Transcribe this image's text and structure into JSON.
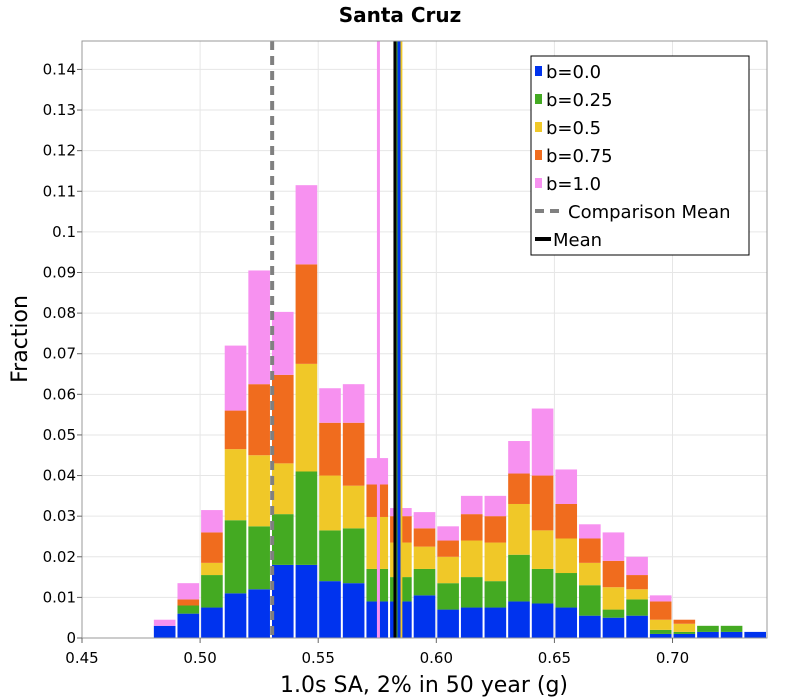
{
  "chart_data": {
    "type": "bar",
    "stacked": true,
    "title": "Santa Cruz",
    "xlabel": "1.0s SA, 2% in 50 year (g)",
    "ylabel": "Fraction",
    "xlim": [
      0.45,
      0.74
    ],
    "ylim": [
      0,
      0.147
    ],
    "xticks": [
      "0.45",
      "0.50",
      "0.55",
      "0.60",
      "0.65",
      "0.70"
    ],
    "xtick_values": [
      0.45,
      0.5,
      0.55,
      0.6,
      0.65,
      0.7
    ],
    "yticks": [
      "0",
      "0.01",
      "0.02",
      "0.03",
      "0.04",
      "0.05",
      "0.06",
      "0.07",
      "0.08",
      "0.09",
      "0.1",
      "0.11",
      "0.12",
      "0.13",
      "0.14"
    ],
    "ytick_values": [
      0,
      0.01,
      0.02,
      0.03,
      0.04,
      0.05,
      0.06,
      0.07,
      0.08,
      0.09,
      0.1,
      0.11,
      0.12,
      0.13,
      0.14
    ],
    "bin_width": 0.01,
    "bin_starts": [
      0.48,
      0.49,
      0.5,
      0.51,
      0.52,
      0.53,
      0.54,
      0.55,
      0.56,
      0.57,
      0.58,
      0.59,
      0.6,
      0.61,
      0.62,
      0.63,
      0.64,
      0.65,
      0.66,
      0.67,
      0.68,
      0.69,
      0.7,
      0.71,
      0.72,
      0.73
    ],
    "series": [
      {
        "name": "b=0.0",
        "color": "#0033ee",
        "values": [
          0.003,
          0.006,
          0.0075,
          0.011,
          0.012,
          0.018,
          0.018,
          0.014,
          0.0135,
          0.009,
          0.009,
          0.0105,
          0.007,
          0.0075,
          0.0075,
          0.009,
          0.0085,
          0.0075,
          0.0055,
          0.005,
          0.0055,
          0.001,
          0.001,
          0.0015,
          0.0015,
          0.0015
        ]
      },
      {
        "name": "b=0.25",
        "color": "#44aa22",
        "values": [
          0.0,
          0.002,
          0.008,
          0.018,
          0.0155,
          0.0125,
          0.023,
          0.0125,
          0.0135,
          0.008,
          0.006,
          0.0065,
          0.0065,
          0.0075,
          0.0065,
          0.0115,
          0.0085,
          0.0085,
          0.0075,
          0.002,
          0.004,
          0.001,
          0.0005,
          0.0015,
          0.0015,
          0.0
        ]
      },
      {
        "name": "b=0.5",
        "color": "#f0c828",
        "values": [
          0.0,
          0.0,
          0.003,
          0.0175,
          0.0175,
          0.0125,
          0.0265,
          0.0135,
          0.0105,
          0.0128,
          0.0085,
          0.0055,
          0.0065,
          0.009,
          0.0095,
          0.0125,
          0.0095,
          0.0085,
          0.0055,
          0.0055,
          0.0025,
          0.0025,
          0.002,
          0.0,
          0.0,
          0.0
        ]
      },
      {
        "name": "b=0.75",
        "color": "#f06c1e",
        "values": [
          0.0,
          0.0015,
          0.0075,
          0.0095,
          0.0175,
          0.0218,
          0.0245,
          0.013,
          0.0155,
          0.008,
          0.0065,
          0.0045,
          0.004,
          0.0065,
          0.0065,
          0.0075,
          0.0135,
          0.0085,
          0.006,
          0.0065,
          0.0035,
          0.0045,
          0.001,
          0.0,
          0.0,
          0.0
        ]
      },
      {
        "name": "b=1.0",
        "color": "#f791f0",
        "values": [
          0.0015,
          0.004,
          0.0055,
          0.016,
          0.028,
          0.0155,
          0.0195,
          0.0085,
          0.0095,
          0.0065,
          0.002,
          0.004,
          0.0035,
          0.0045,
          0.005,
          0.008,
          0.0165,
          0.0085,
          0.0035,
          0.007,
          0.0045,
          0.0015,
          0.0,
          0.0,
          0.0,
          0.0
        ]
      }
    ],
    "vlines": [
      {
        "name": "Comparison Mean",
        "x": 0.5305,
        "style": "dashed",
        "color": "#808080",
        "in_legend": true
      },
      {
        "name": "b=1.0 mean",
        "x": 0.5755,
        "style": "solid",
        "color": "#f791f0",
        "in_legend": false
      },
      {
        "name": "b=0.75 mean",
        "x": 0.5825,
        "style": "solid",
        "color": "#f06c1e",
        "in_legend": false
      },
      {
        "name": "b=0.5 mean",
        "x": 0.585,
        "style": "solid",
        "color": "#f0c828",
        "in_legend": false
      },
      {
        "name": "b=0.25 mean",
        "x": 0.5838,
        "style": "solid",
        "color": "#44aa22",
        "in_legend": false
      },
      {
        "name": "b=0.0 mean",
        "x": 0.5842,
        "style": "solid",
        "color": "#0033ee",
        "in_legend": false
      },
      {
        "name": "Mean",
        "x": 0.5825,
        "style": "solid",
        "color": "#000000",
        "in_legend": true
      }
    ],
    "legend": {
      "position": "top-right",
      "entries": [
        {
          "label": "b=0.0",
          "kind": "box",
          "color": "#0033ee"
        },
        {
          "label": "b=0.25",
          "kind": "box",
          "color": "#44aa22"
        },
        {
          "label": "b=0.5",
          "kind": "box",
          "color": "#f0c828"
        },
        {
          "label": "b=0.75",
          "kind": "box",
          "color": "#f06c1e"
        },
        {
          "label": "b=1.0",
          "kind": "box",
          "color": "#f791f0"
        },
        {
          "label": "Comparison Mean",
          "kind": "dashed",
          "color": "#808080"
        },
        {
          "label": "Mean",
          "kind": "line",
          "color": "#000000"
        }
      ]
    },
    "grid": true
  }
}
